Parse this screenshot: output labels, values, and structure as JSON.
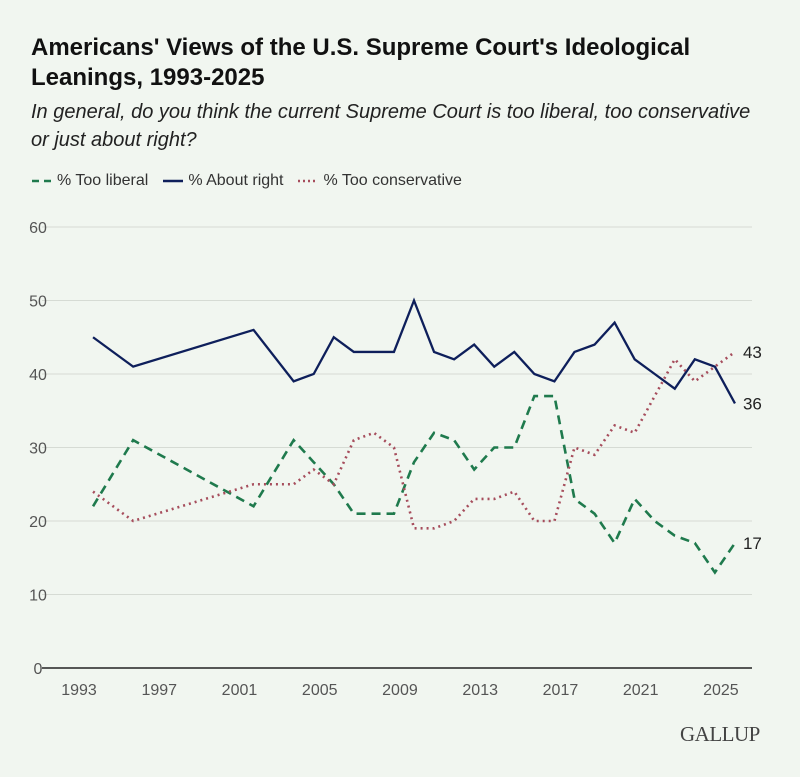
{
  "chart_data": {
    "type": "line",
    "title": "Americans' Views of the U.S. Supreme Court's Ideological Leanings, 1993-2025",
    "subtitle": "In general, do you think the current Supreme Court is too liberal, too conservative or just about right?",
    "xlabel": "",
    "ylabel": "",
    "ylim": [
      0,
      60
    ],
    "yticks": [
      "0",
      "10",
      "20",
      "30",
      "40",
      "50",
      "60"
    ],
    "xticks": [
      "1993",
      "1997",
      "2001",
      "2005",
      "2009",
      "2013",
      "2017",
      "2021",
      "2025"
    ],
    "grid": "horizontal",
    "legend_placement": "top-left",
    "x": [
      1993,
      1995,
      2001,
      2003,
      2004,
      2005,
      2006,
      2007,
      2008,
      2009,
      2010,
      2011,
      2012,
      2013,
      2014,
      2015,
      2016,
      2017,
      2018,
      2019,
      2020,
      2021,
      2022,
      2023,
      2024,
      2025
    ],
    "series": [
      {
        "name": "% Too liberal",
        "color": "#1f7a4d",
        "style": "dashed",
        "end_label": "17",
        "values": [
          22,
          31,
          22,
          31,
          28,
          25,
          21,
          21,
          21,
          28,
          32,
          31,
          27,
          30,
          30,
          37,
          37,
          23,
          21,
          17,
          23,
          20,
          18,
          17,
          13,
          17
        ]
      },
      {
        "name": "% About right",
        "color": "#0e1f5b",
        "style": "solid",
        "end_label": "36",
        "values": [
          45,
          41,
          46,
          39,
          40,
          45,
          43,
          43,
          43,
          50,
          43,
          42,
          44,
          41,
          43,
          40,
          39,
          43,
          44,
          47,
          42,
          40,
          38,
          42,
          41,
          36
        ]
      },
      {
        "name": "% Too conservative",
        "color": "#a64d5c",
        "style": "dotted",
        "end_label": "43",
        "values": [
          24,
          20,
          25,
          25,
          27,
          25,
          31,
          32,
          30,
          19,
          19,
          20,
          23,
          23,
          24,
          20,
          20,
          30,
          29,
          33,
          32,
          37,
          42,
          39,
          41,
          43
        ]
      }
    ]
  },
  "logo": "GALLUP"
}
